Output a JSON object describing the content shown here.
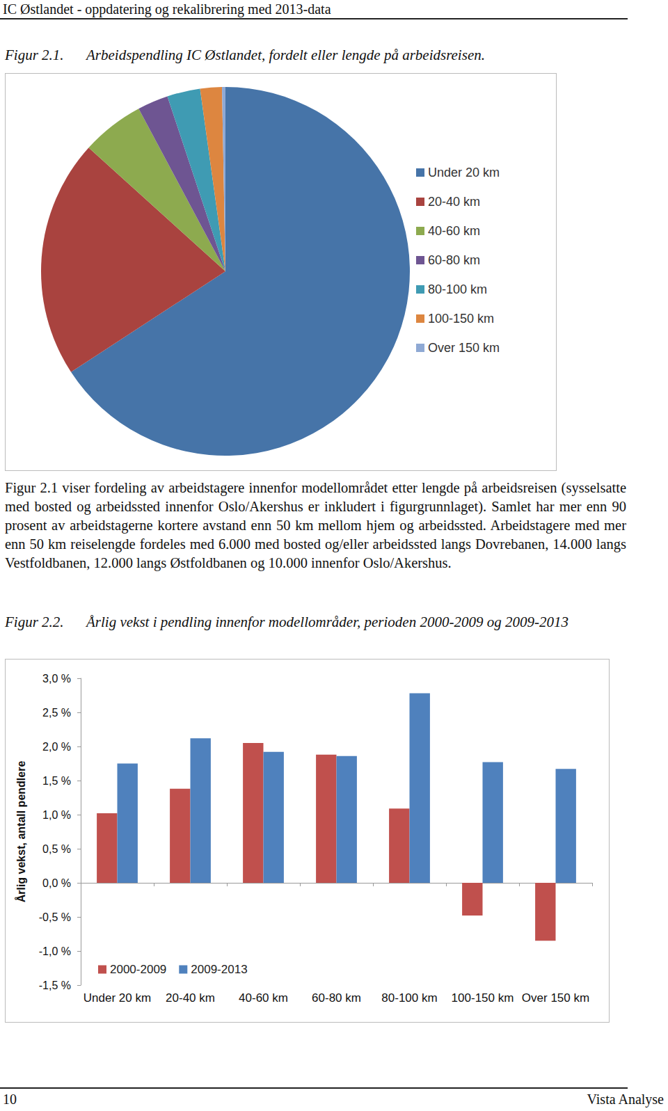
{
  "header": {
    "title": "IC Østlandet - oppdatering og rekalibrering med 2013-data"
  },
  "figure_1": {
    "label": "Figur 2.1.",
    "caption": "Arbeidspendling IC Østlandet, fordelt eller lengde på arbeidsreisen."
  },
  "paragraph": "Figur 2.1 viser fordeling av arbeidstagere innenfor modellområdet etter lengde på arbeidsreisen (sysselsatte med bosted og arbeidssted innenfor Oslo/Akershus er inkludert i figurgrunnlaget). Samlet har mer enn 90 prosent av arbeidstagerne kortere avstand enn 50 km mellom hjem og arbeidssted. Arbeidstagere med mer enn 50 km reiselengde fordeles med 6.000 med bosted og/eller arbeidssted langs Dovrebanen, 14.000 langs Vestfoldbanen, 12.000 langs Østfoldbanen og 10.000 innenfor Oslo/Akershus.",
  "figure_2": {
    "label": "Figur 2.2.",
    "caption": "Årlig vekst i pendling innenfor modellområder, perioden 2000-2009 og 2009-2013"
  },
  "footer": {
    "page": "10",
    "publisher": "Vista Analyse"
  },
  "chart_data": [
    {
      "type": "pie",
      "categories": [
        "Under 20 km",
        "20-40 km",
        "40-60 km",
        "60-80 km",
        "80-100 km",
        "100-150 km",
        "Over 150 km"
      ],
      "values": [
        65.8,
        20.9,
        5.5,
        2.7,
        2.9,
        1.9,
        0.3
      ],
      "colors": [
        "#4674a8",
        "#a9433f",
        "#8daa4f",
        "#6e5592",
        "#3f9bb3",
        "#dd8640",
        "#8fa9d4"
      ],
      "legend": "right"
    },
    {
      "type": "bar",
      "categories": [
        "Under 20 km",
        "20-40 km",
        "40-60 km",
        "60-80 km",
        "80-100 km",
        "100-150 km",
        "Over 150 km"
      ],
      "series": [
        {
          "name": "2000-2009",
          "color": "#c0504d",
          "values": [
            1.02,
            1.38,
            2.05,
            1.88,
            1.09,
            -0.48,
            -0.85
          ]
        },
        {
          "name": "2009-2013",
          "color": "#4f81bd",
          "values": [
            1.75,
            2.12,
            1.92,
            1.86,
            2.78,
            1.77,
            1.67
          ]
        }
      ],
      "y_label": "Årlig vekst, antall pendlere",
      "ylim": [
        -1.5,
        3.0
      ],
      "yticks": [
        {
          "value": -1.5,
          "label": "-1,5 %"
        },
        {
          "value": -1.0,
          "label": "-1,0 %"
        },
        {
          "value": -0.5,
          "label": "-0,5 %"
        },
        {
          "value": 0,
          "label": "0,0 %"
        },
        {
          "value": 0.5,
          "label": "0,5 %"
        },
        {
          "value": 1.0,
          "label": "1,0 %"
        },
        {
          "value": 1.5,
          "label": "1,5 %"
        },
        {
          "value": 2.0,
          "label": "2,0 %"
        },
        {
          "value": 2.5,
          "label": "2,5 %"
        },
        {
          "value": 3.0,
          "label": "3,0 %"
        }
      ],
      "grid": false,
      "legend": "bottom-left"
    }
  ]
}
